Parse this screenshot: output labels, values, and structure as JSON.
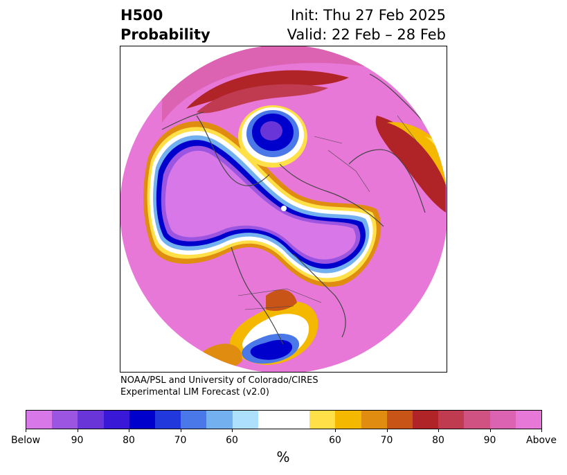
{
  "title": {
    "field": "H500",
    "product": "Probability",
    "init": "Init: Thu 27 Feb 2025",
    "valid": "Valid: 22 Feb – 28 Feb"
  },
  "credit": {
    "line1": "NOAA/PSL and University of Colorado/CIRES",
    "line2": "Experimental LIM Forecast (v2.0)"
  },
  "map": {
    "projection": "north-polar-stereographic",
    "regions": [
      {
        "name": "north-pacific-low-anomaly",
        "category": "Below"
      },
      {
        "name": "north-america-low-anomaly",
        "category": "Below"
      },
      {
        "name": "scandinavia-low-anomaly",
        "category": "Below"
      },
      {
        "name": "gulf-of-mexico-low-anomaly",
        "category": "Below"
      },
      {
        "name": "subtropical-high-anomaly",
        "category": "Above"
      },
      {
        "name": "asia-high-anomaly",
        "category": "Above"
      }
    ]
  },
  "colorbar": {
    "unit": "%",
    "colors": [
      "#d878e8",
      "#9b55e0",
      "#6a35d8",
      "#3a18d8",
      "#0000cc",
      "#2038dc",
      "#4a78e8",
      "#72b0f0",
      "#ace0fc",
      "#ffffff",
      "#ffffff",
      "#ffe048",
      "#f4b800",
      "#e08c10",
      "#c85418",
      "#b02428",
      "#c03a50",
      "#cf5282",
      "#dc62b2",
      "#e878d8"
    ],
    "labels": [
      "Below",
      "90",
      "80",
      "70",
      "60",
      "60",
      "70",
      "80",
      "90",
      "Above"
    ]
  }
}
